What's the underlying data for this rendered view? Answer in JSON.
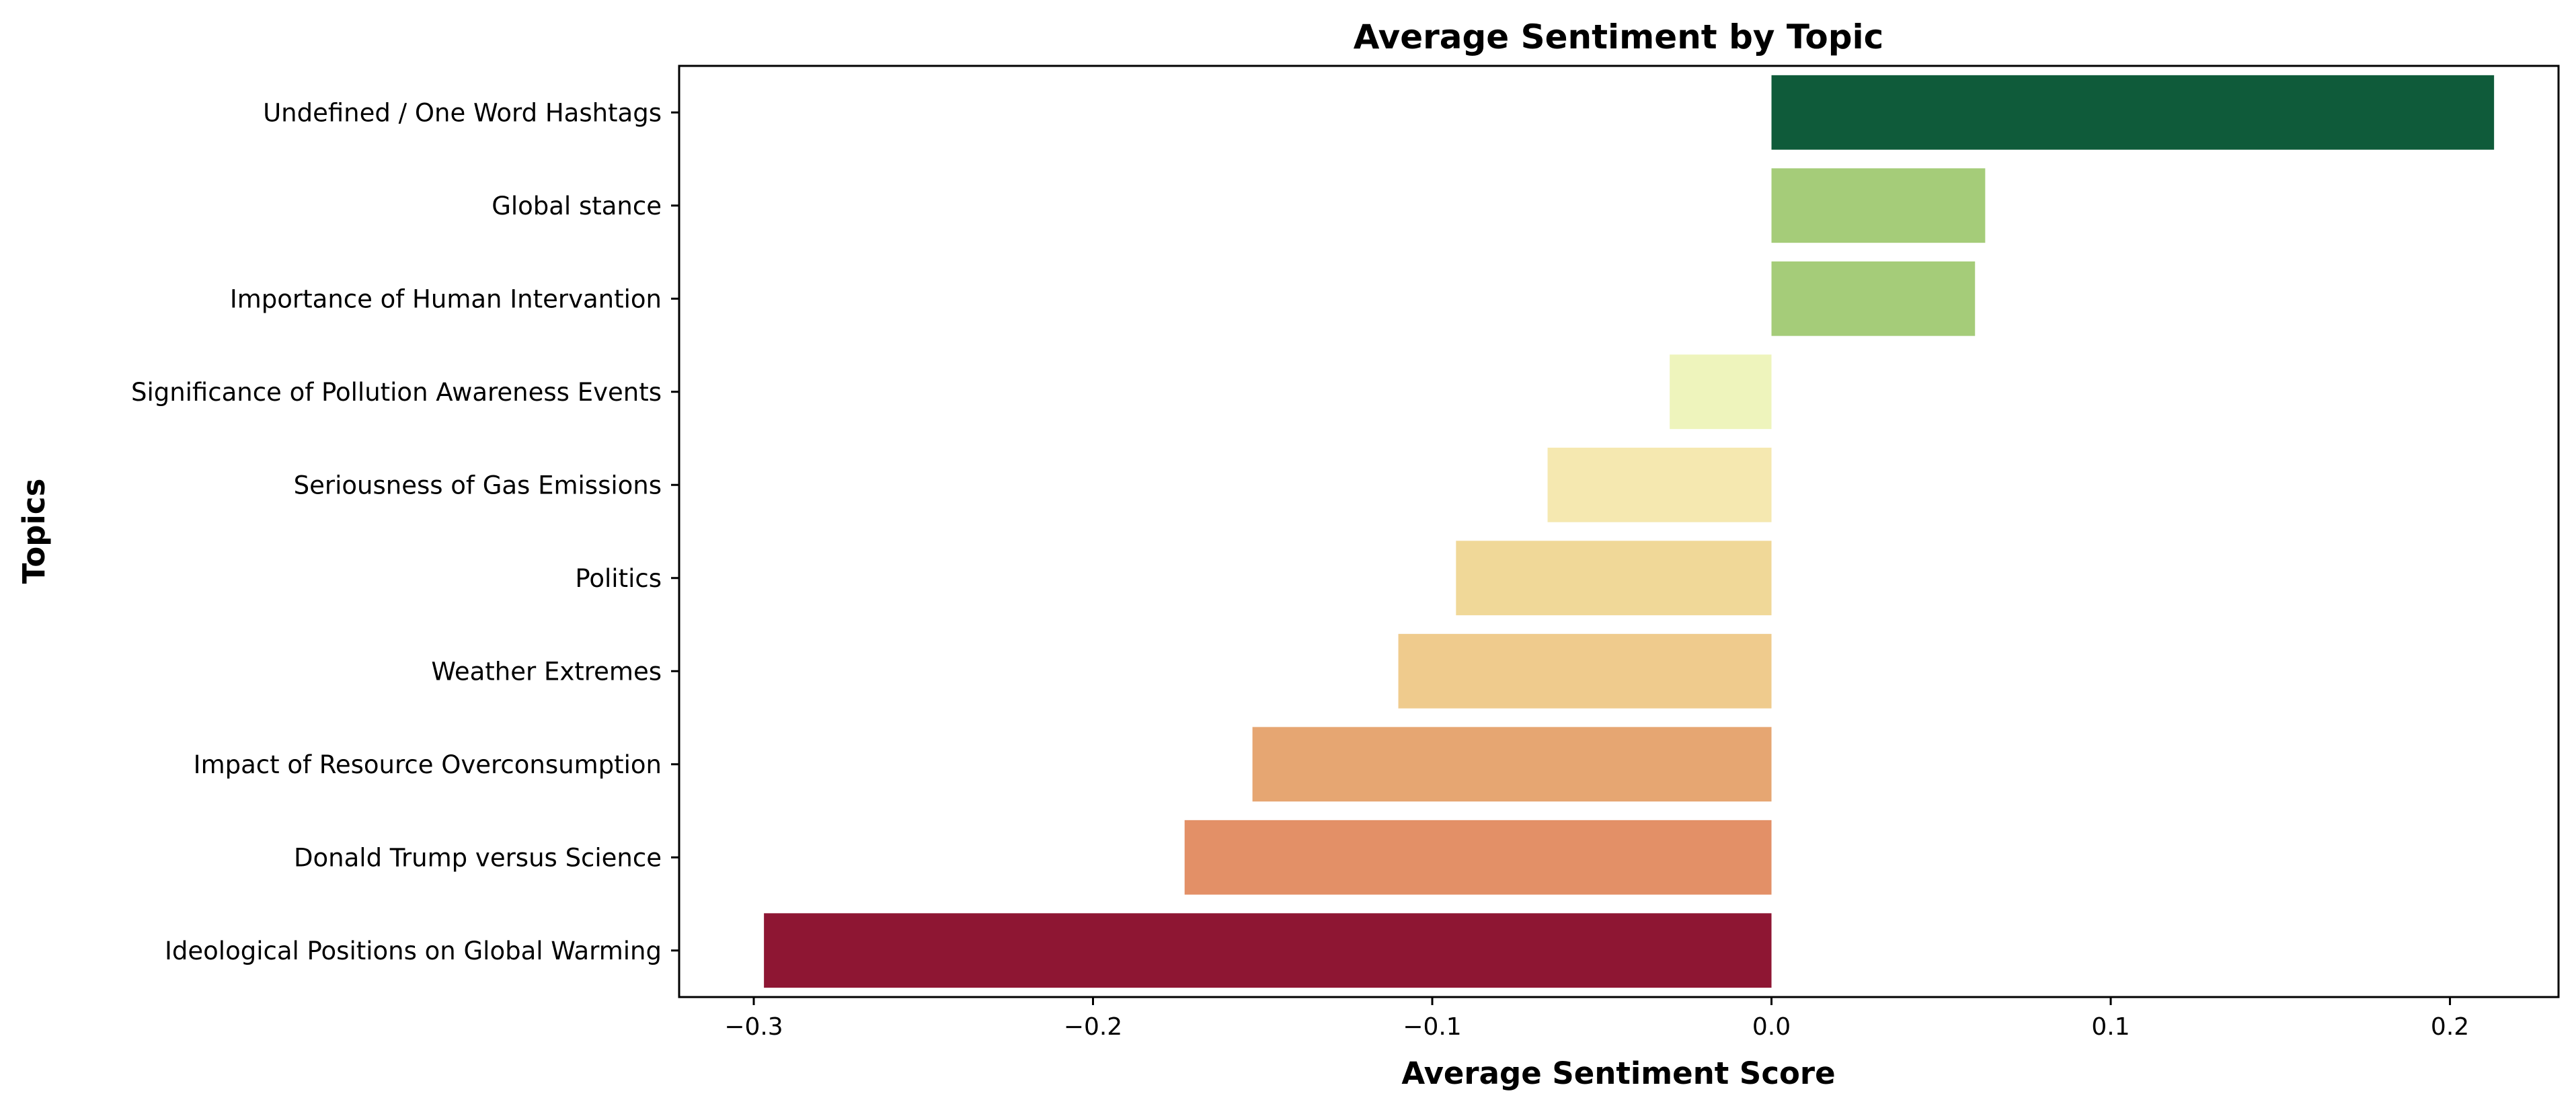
{
  "chart_data": {
    "type": "bar",
    "orientation": "horizontal",
    "title": "Average Sentiment by Topic",
    "xlabel": "Average Sentiment Score",
    "ylabel": "Topics",
    "xlim": [
      -0.322,
      0.232
    ],
    "xticks": [
      -0.3,
      -0.2,
      -0.1,
      0.0,
      0.1,
      0.2
    ],
    "xtick_labels": [
      "−0.3",
      "−0.2",
      "−0.1",
      "0.0",
      "0.1",
      "0.2"
    ],
    "grid": false,
    "categories": [
      "Undefined / One Word Hashtags",
      "Global stance",
      "Importance of Human Intervantion",
      "Significance of Pollution Awareness Events",
      "Seriousness of Gas Emissions",
      "Politics",
      "Weather Extremes",
      "Impact of Resource Overconsumption",
      "Donald Trump versus Science",
      "Ideological Positions on Global Warming"
    ],
    "values": [
      0.213,
      0.063,
      0.06,
      -0.03,
      -0.066,
      -0.093,
      -0.11,
      -0.153,
      -0.173,
      -0.297
    ],
    "colors": [
      "#0f5b3a",
      "#a5cc79",
      "#a5cc79",
      "#eef4bc",
      "#f5e8b0",
      "#f0d898",
      "#efcb8d",
      "#e6a672",
      "#e39067",
      "#8e1633"
    ]
  }
}
